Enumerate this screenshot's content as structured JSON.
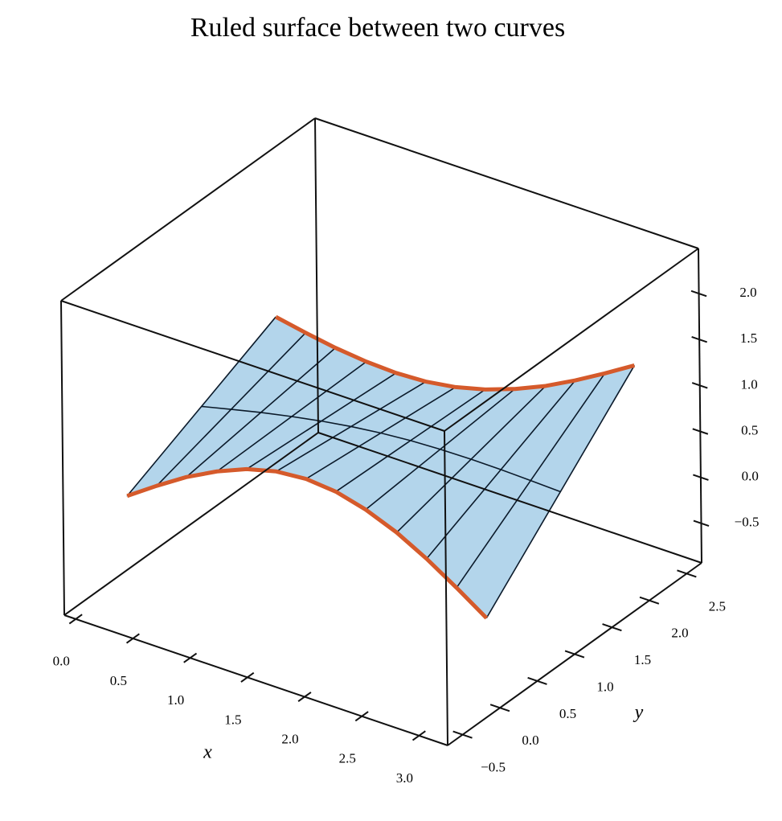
{
  "chart_data": {
    "type": "ruled_surface",
    "title": "Ruled surface between two curves",
    "xlabel": "x",
    "ylabel": "y",
    "xlim": [
      -0.1,
      3.25
    ],
    "ylim": [
      -0.7,
      2.7
    ],
    "zlim": [
      -0.93,
      2.49
    ],
    "xticks": [
      {
        "value": 0,
        "label": "0.0"
      },
      0.5,
      {
        "value": 1,
        "label": "1.0"
      },
      1.5,
      {
        "value": 2,
        "label": "2.0"
      },
      2.5,
      {
        "value": 3,
        "label": "3.0"
      }
    ],
    "yticks": [
      {
        "value": -0.5,
        "label": "−0.5"
      },
      {
        "value": 0,
        "label": "0.0"
      },
      0.5,
      {
        "value": 1,
        "label": "1.0"
      },
      1.5,
      {
        "value": 2,
        "label": "2.0"
      },
      2.5
    ],
    "zticks": [
      {
        "value": -0.5,
        "label": "−0.5"
      },
      {
        "value": 0,
        "label": "0.0"
      },
      0.5,
      {
        "value": 1,
        "label": "1.0"
      },
      1.5,
      {
        "value": 2,
        "label": "2.0"
      }
    ],
    "x": [
      0,
      0.26,
      0.52,
      0.79,
      1.05,
      1.31,
      1.57,
      1.83,
      2.09,
      2.36,
      2.62,
      2.88,
      3.14
    ],
    "curves": [
      {
        "y": 0,
        "color": "#d55a2b",
        "z": [
          0,
          0.22,
          0.425,
          0.601,
          0.736,
          0.821,
          0.85,
          0.821,
          0.736,
          0.601,
          0.425,
          0.22,
          0
        ]
      },
      {
        "y": 2,
        "color": "#d55a2b",
        "z": [
          0.78,
          0.717,
          0.663,
          0.627,
          0.614,
          0.63,
          0.68,
          0.764,
          0.88,
          1.027,
          1.197,
          1.384,
          1.58
        ]
      }
    ],
    "surface_color": "#b3d5eb"
  }
}
